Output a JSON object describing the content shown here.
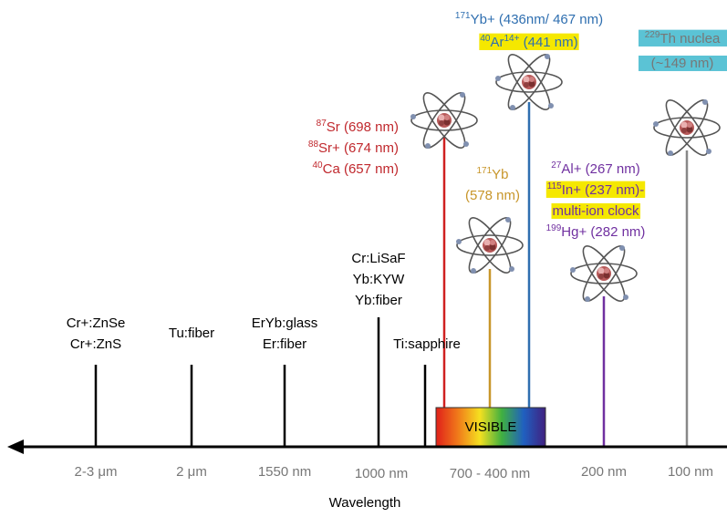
{
  "lasers": [
    {
      "lines": [
        "Cr+:ZnSe",
        "Cr+:ZnS"
      ]
    },
    {
      "lines": [
        "Tu:fiber"
      ]
    },
    {
      "lines": [
        "ErYb:glass",
        "Er:fiber"
      ]
    },
    {
      "lines": [
        "Cr:LiSaF",
        "Yb:KYW",
        "Yb:fiber"
      ]
    },
    {
      "lines": [
        "Ti:sapphire"
      ]
    }
  ],
  "visible": "VISIBLE",
  "clocks": [
    {
      "lines": [
        [
          {
            "sup": "87"
          },
          {
            "text": "Sr (698 nm)"
          }
        ],
        [
          {
            "sup": "88"
          },
          {
            "text": "Sr+ (674 nm)"
          }
        ],
        [
          {
            "sup": "40"
          },
          {
            "text": "Ca (657 nm)"
          }
        ]
      ]
    },
    {
      "lines": [
        [
          {
            "sup": "171"
          },
          {
            "text": "Yb"
          }
        ],
        [
          {
            "text": "(578 nm)"
          }
        ]
      ]
    },
    {
      "lines": [
        [
          {
            "sup": "171"
          },
          {
            "text": "Yb+ (436nm/ 467 nm)"
          }
        ],
        [
          {
            "sup": "40"
          },
          {
            "text": "Ar"
          },
          {
            "sup": "14+"
          },
          {
            "text": " (441 nm)"
          }
        ]
      ]
    },
    {
      "lines": [
        [
          {
            "sup": "27"
          },
          {
            "text": "Al+ (267 nm)"
          }
        ],
        [
          {
            "sup": "115"
          },
          {
            "text": "In+ (237 nm)-"
          }
        ],
        [
          {
            "text": "multi-ion clock"
          }
        ],
        [
          {
            "sup": "199"
          },
          {
            "text": "Hg+ (282 nm)"
          }
        ]
      ]
    },
    {
      "lines": [
        [
          {
            "sup": "229"
          },
          {
            "text": "Th nuclea"
          }
        ],
        [
          {
            "text": "(~149 nm)"
          }
        ]
      ]
    }
  ],
  "axis": {
    "labels": [
      "2-3 μm",
      "2 μm",
      "1550 nm",
      "1000 nm",
      "700 - 400 nm",
      "200 nm",
      "100 nm"
    ],
    "title": "Wavelength"
  }
}
